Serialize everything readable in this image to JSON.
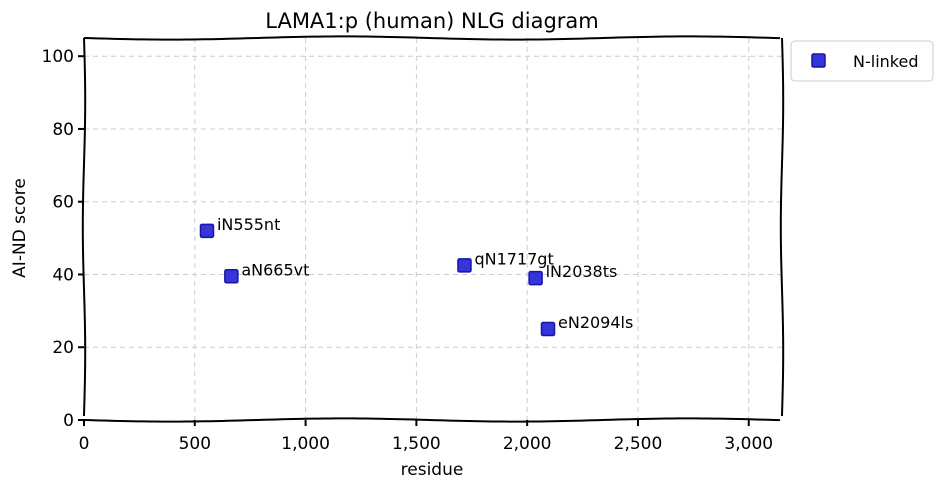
{
  "chart_data": {
    "type": "scatter",
    "title": "LAMA1:p (human) NLG diagram",
    "xlabel": "residue",
    "ylabel": "AI-ND score",
    "xlim": [
      0,
      3150
    ],
    "ylim": [
      0,
      105
    ],
    "x_ticks": [
      0,
      500,
      1000,
      1500,
      2000,
      2500,
      3000
    ],
    "x_tick_labels": [
      "0",
      "500",
      "1,000",
      "1,500",
      "2,000",
      "2,500",
      "3,000"
    ],
    "y_ticks": [
      0,
      20,
      40,
      60,
      80,
      100
    ],
    "y_tick_labels": [
      "0",
      "20",
      "40",
      "60",
      "80",
      "100"
    ],
    "grid": true,
    "legend_position": "outside-top-right",
    "series": [
      {
        "name": "N-linked",
        "color": "#1f1fd6",
        "marker": "square",
        "points": [
          {
            "x": 555,
            "y": 52,
            "label": "iN555nt"
          },
          {
            "x": 665,
            "y": 39.5,
            "label": "aN665vt"
          },
          {
            "x": 1717,
            "y": 42.5,
            "label": "qN1717gt"
          },
          {
            "x": 2038,
            "y": 39,
            "label": "lN2038ts"
          },
          {
            "x": 2094,
            "y": 25,
            "label": "eN2094ls"
          }
        ]
      }
    ]
  }
}
